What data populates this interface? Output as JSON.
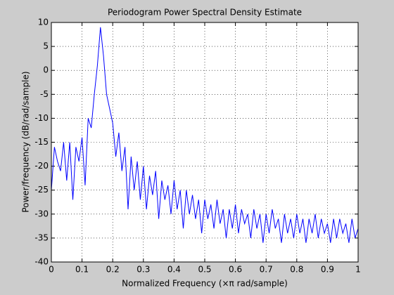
{
  "chart_data": {
    "type": "line",
    "title": "Periodogram Power Spectral Density Estimate",
    "xlabel": "Normalized Frequency  (×π rad/sample)",
    "ylabel": "Power/frequency  (dB/rad/sample)",
    "x": [
      0,
      0.01,
      0.02,
      0.03,
      0.04,
      0.05,
      0.06,
      0.07,
      0.08,
      0.09,
      0.1,
      0.11,
      0.12,
      0.13,
      0.14,
      0.15,
      0.16,
      0.17,
      0.18,
      0.19,
      0.2,
      0.21,
      0.22,
      0.23,
      0.24,
      0.25,
      0.26,
      0.27,
      0.28,
      0.29,
      0.3,
      0.31,
      0.32,
      0.33,
      0.34,
      0.35,
      0.36,
      0.37,
      0.38,
      0.39,
      0.4,
      0.41,
      0.42,
      0.43,
      0.44,
      0.45,
      0.46,
      0.47,
      0.48,
      0.49,
      0.5,
      0.51,
      0.52,
      0.53,
      0.54,
      0.55,
      0.56,
      0.57,
      0.58,
      0.59,
      0.6,
      0.61,
      0.62,
      0.63,
      0.64,
      0.65,
      0.66,
      0.67,
      0.68,
      0.69,
      0.7,
      0.71,
      0.72,
      0.73,
      0.74,
      0.75,
      0.76,
      0.77,
      0.78,
      0.79,
      0.8,
      0.81,
      0.82,
      0.83,
      0.84,
      0.85,
      0.86,
      0.87,
      0.88,
      0.89,
      0.9,
      0.91,
      0.92,
      0.93,
      0.94,
      0.95,
      0.96,
      0.97,
      0.98,
      0.99,
      1
    ],
    "series": [
      {
        "color": "#0000ff",
        "values": [
          -25,
          -16,
          -19,
          -21,
          -15,
          -23,
          -15,
          -27,
          -16,
          -19,
          -14,
          -24,
          -10,
          -12,
          -5,
          1,
          9,
          3,
          -5,
          -8,
          -11,
          -18,
          -13,
          -21,
          -16,
          -29,
          -18,
          -25,
          -19,
          -27,
          -20,
          -29,
          -22,
          -26,
          -21,
          -31,
          -23,
          -27,
          -24,
          -30,
          -23,
          -29,
          -25,
          -33,
          -25,
          -30,
          -26,
          -31,
          -27,
          -34,
          -27,
          -31,
          -28,
          -33,
          -27,
          -32,
          -29,
          -35,
          -29,
          -33,
          -28,
          -34,
          -29,
          -32,
          -30,
          -35,
          -29,
          -33,
          -30,
          -36,
          -30,
          -34,
          -29,
          -33,
          -31,
          -36,
          -30,
          -34,
          -31,
          -35,
          -30,
          -34,
          -31,
          -36,
          -31,
          -34,
          -30,
          -35,
          -31,
          -34,
          -32,
          -36,
          -31,
          -35,
          -31,
          -34,
          -32,
          -36,
          -31,
          -35,
          -33
        ]
      }
    ],
    "xlim": [
      0,
      1
    ],
    "xticks": [
      0,
      0.1,
      0.2,
      0.3,
      0.4,
      0.5,
      0.6,
      0.7,
      0.8,
      0.9,
      1
    ],
    "ylim": [
      -40,
      10
    ],
    "yticks": [
      -40,
      -35,
      -30,
      -25,
      -20,
      -15,
      -10,
      -5,
      0,
      5,
      10
    ],
    "grid": true
  }
}
